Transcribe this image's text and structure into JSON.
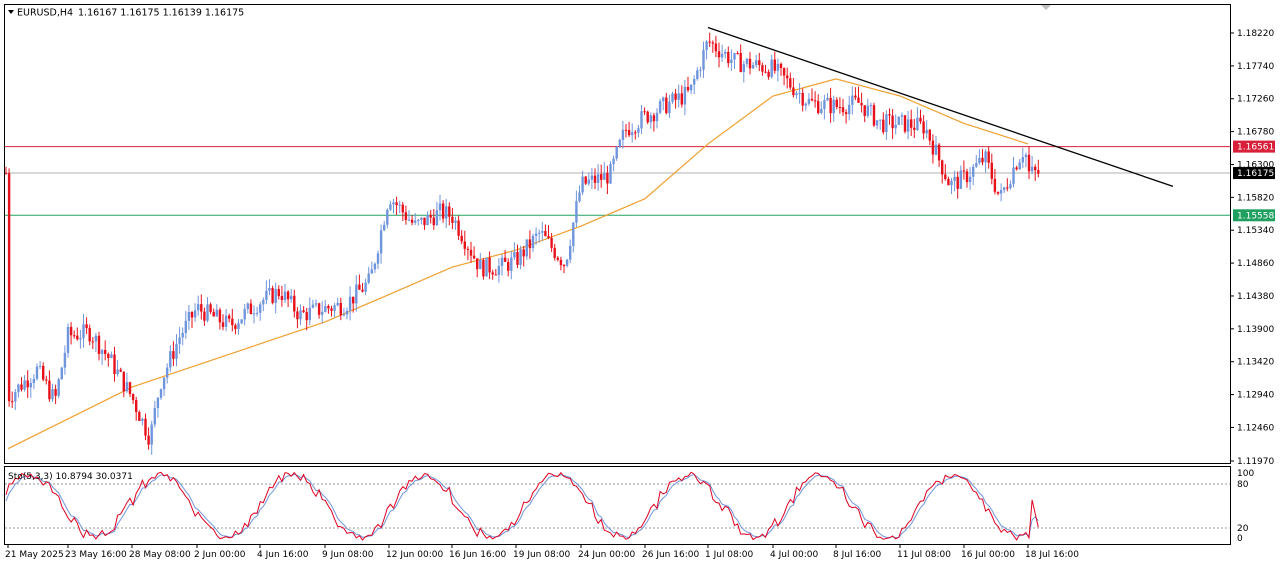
{
  "header": {
    "symbol_timeframe": "EURUSD,H4",
    "ohlc": "1.16167 1.16175 1.16139 1.16175"
  },
  "stochastic": {
    "label": "Sto(5,3,3) 10.8794 30.0371",
    "levels": {
      "top": "100",
      "upper": "80",
      "lower": "20",
      "bottom": "0"
    }
  },
  "price_axis": {
    "ticks": [
      "1.18220",
      "1.17740",
      "1.17260",
      "1.16780",
      "1.16300",
      "1.15820",
      "1.15340",
      "1.14860",
      "1.14380",
      "1.13900",
      "1.13420",
      "1.12940",
      "1.12460",
      "1.11970"
    ],
    "badges": {
      "red_level": "1.16561",
      "current_price": "1.16175",
      "green_level": "1.15558"
    }
  },
  "time_axis": {
    "ticks": [
      "21 May 2025",
      "23 May 16:00",
      "28 May 08:00",
      "2 Jun 00:00",
      "4 Jun 16:00",
      "9 Jun 08:00",
      "12 Jun 00:00",
      "16 Jun 16:00",
      "19 Jun 08:00",
      "24 Jun 00:00",
      "26 Jun 16:00",
      "1 Jul 08:00",
      "4 Jul 00:00",
      "8 Jul 16:00",
      "11 Jul 08:00",
      "16 Jul 00:00",
      "18 Jul 16:00"
    ]
  },
  "colors": {
    "bull": "#6f95dc",
    "bear": "#e8101a",
    "ma": "#f0a030",
    "trendline": "#000000",
    "red_line": "#d8203a",
    "green_line": "#20a060",
    "current_line": "#b0b0b0",
    "sto_main": "#e00020",
    "sto_signal": "#6f95dc"
  },
  "chart_data": {
    "type": "candlestick",
    "symbol": "EURUSD",
    "timeframe": "H4",
    "ylim": [
      1.1197,
      1.185
    ],
    "close_path": [
      {
        "t": "21 May 2025",
        "p": 1.129
      },
      {
        "t": "22 May",
        "p": 1.133
      },
      {
        "t": "23 May",
        "p": 1.1285
      },
      {
        "t": "23 May 16:00",
        "p": 1.138
      },
      {
        "t": "26 May",
        "p": 1.1385
      },
      {
        "t": "27 May",
        "p": 1.1345
      },
      {
        "t": "28 May 08:00",
        "p": 1.129
      },
      {
        "t": "28 May 20:00",
        "p": 1.123
      },
      {
        "t": "29 May",
        "p": 1.131
      },
      {
        "t": "30 May",
        "p": 1.138
      },
      {
        "t": "2 Jun 00:00",
        "p": 1.142
      },
      {
        "t": "3 Jun",
        "p": 1.1395
      },
      {
        "t": "4 Jun 16:00",
        "p": 1.143
      },
      {
        "t": "5 Jun",
        "p": 1.1445
      },
      {
        "t": "6 Jun",
        "p": 1.141
      },
      {
        "t": "9 Jun 08:00",
        "p": 1.142
      },
      {
        "t": "10 Jun",
        "p": 1.1425
      },
      {
        "t": "11 Jun",
        "p": 1.146
      },
      {
        "t": "12 Jun 00:00",
        "p": 1.1585
      },
      {
        "t": "13 Jun",
        "p": 1.154
      },
      {
        "t": "16 Jun",
        "p": 1.156
      },
      {
        "t": "16 Jun 16:00",
        "p": 1.1555
      },
      {
        "t": "17 Jun",
        "p": 1.148
      },
      {
        "t": "18 Jun",
        "p": 1.148
      },
      {
        "t": "19 Jun 08:00",
        "p": 1.149
      },
      {
        "t": "20 Jun",
        "p": 1.153
      },
      {
        "t": "23 Jun",
        "p": 1.1485
      },
      {
        "t": "24 Jun 00:00",
        "p": 1.16
      },
      {
        "t": "25 Jun",
        "p": 1.1615
      },
      {
        "t": "26 Jun",
        "p": 1.168
      },
      {
        "t": "26 Jun 16:00",
        "p": 1.17
      },
      {
        "t": "27 Jun",
        "p": 1.172
      },
      {
        "t": "30 Jun",
        "p": 1.1735
      },
      {
        "t": "1 Jul 08:00",
        "p": 1.181
      },
      {
        "t": "2 Jul",
        "p": 1.178
      },
      {
        "t": "3 Jul",
        "p": 1.1775
      },
      {
        "t": "4 Jul 00:00",
        "p": 1.177
      },
      {
        "t": "7 Jul",
        "p": 1.172
      },
      {
        "t": "8 Jul 16:00",
        "p": 1.1715
      },
      {
        "t": "9 Jul",
        "p": 1.172
      },
      {
        "t": "10 Jul",
        "p": 1.169
      },
      {
        "t": "11 Jul 08:00",
        "p": 1.169
      },
      {
        "t": "14 Jul",
        "p": 1.1685
      },
      {
        "t": "15 Jul",
        "p": 1.16
      },
      {
        "t": "16 Jul 00:00",
        "p": 1.161
      },
      {
        "t": "16 Jul 12:00",
        "p": 1.164
      },
      {
        "t": "17 Jul",
        "p": 1.158
      },
      {
        "t": "17 Jul 20:00",
        "p": 1.163
      },
      {
        "t": "18 Jul 00:00",
        "p": 1.1655
      },
      {
        "t": "18 Jul 16:00",
        "p": 1.16175
      }
    ],
    "ma_path": [
      {
        "t": "21 May 2025",
        "p": 1.1215
      },
      {
        "t": "28 May 08:00",
        "p": 1.1305
      },
      {
        "t": "9 Jun 08:00",
        "p": 1.14
      },
      {
        "t": "12 Jun 00:00",
        "p": 1.144
      },
      {
        "t": "16 Jun 16:00",
        "p": 1.148
      },
      {
        "t": "19 Jun 08:00",
        "p": 1.1505
      },
      {
        "t": "24 Jun 00:00",
        "p": 1.154
      },
      {
        "t": "26 Jun 16:00",
        "p": 1.158
      },
      {
        "t": "1 Jul 08:00",
        "p": 1.166
      },
      {
        "t": "4 Jul 00:00",
        "p": 1.173
      },
      {
        "t": "8 Jul 16:00",
        "p": 1.1755
      },
      {
        "t": "11 Jul 08:00",
        "p": 1.173
      },
      {
        "t": "16 Jul 00:00",
        "p": 1.169
      },
      {
        "t": "18 Jul 16:00",
        "p": 1.166
      }
    ],
    "trendline": [
      {
        "t": "1 Jul 08:00",
        "p": 1.183
      },
      {
        "t": "beyond 18 Jul 16:00",
        "p": 1.1598
      }
    ],
    "horizontal_levels": {
      "red": 1.16561,
      "green": 1.15558,
      "current": 1.16175
    },
    "stochastic": {
      "k": 5,
      "d": 3,
      "slowing": 3,
      "main": 10.8794,
      "signal": 30.0371,
      "levels": [
        20,
        80
      ]
    }
  }
}
